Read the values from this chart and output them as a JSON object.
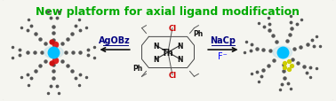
{
  "title": "New platform for axial ligand modification",
  "title_color": "#00aa00",
  "title_fontsize": 9,
  "bg_color": "#f5f5f0",
  "border_color": "#aaaaaa",
  "left_reagent": "AgOBz",
  "left_reagent_color": "#000080",
  "right_reagent_top": "NaCp",
  "right_reagent_bottom": "F⁻",
  "right_reagent_color_top": "#000080",
  "right_reagent_color_bottom": "#0000ff",
  "center_metal": "Th",
  "center_cl_color": "#cc0000",
  "center_n_color": "#000000",
  "figsize": [
    3.78,
    1.15
  ],
  "dpi": 100
}
